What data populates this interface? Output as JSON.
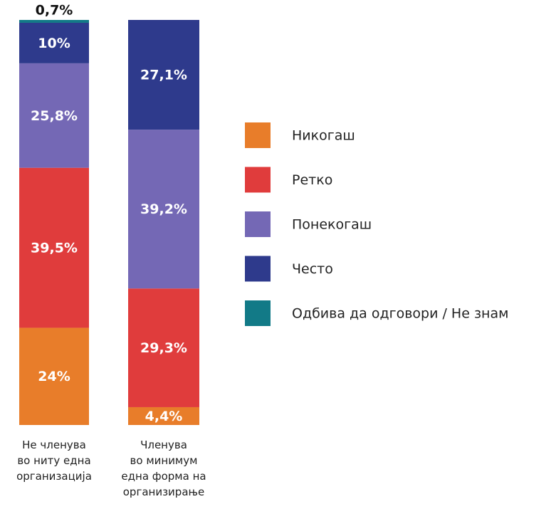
{
  "chart_data": {
    "type": "stacked-bar",
    "categories": [
      "Не членува\nво ниту една\nорганизација",
      "Членува\nво минимум\nедна форма на\nорганизирање"
    ],
    "series": [
      {
        "name": "Никогаш",
        "color": "#e87d2a",
        "values": [
          24,
          4.4
        ],
        "value_labels": [
          "24%",
          "4,4%"
        ]
      },
      {
        "name": "Ретко",
        "color": "#e03c3c",
        "values": [
          39.5,
          29.3
        ],
        "value_labels": [
          "39,5%",
          "29,3%"
        ]
      },
      {
        "name": "Понекогаш",
        "color": "#7468b5",
        "values": [
          25.8,
          39.2
        ],
        "value_labels": [
          "25,8%",
          "39,2%"
        ]
      },
      {
        "name": "Често",
        "color": "#2e3a8c",
        "values": [
          10,
          27.1
        ],
        "value_labels": [
          "10%",
          "27,1%"
        ]
      },
      {
        "name": "Одбива да одговори / Не знам",
        "color": "#127a87",
        "values": [
          0.7,
          null
        ],
        "value_labels": [
          "0,7%",
          null
        ]
      }
    ],
    "legend": "right"
  }
}
